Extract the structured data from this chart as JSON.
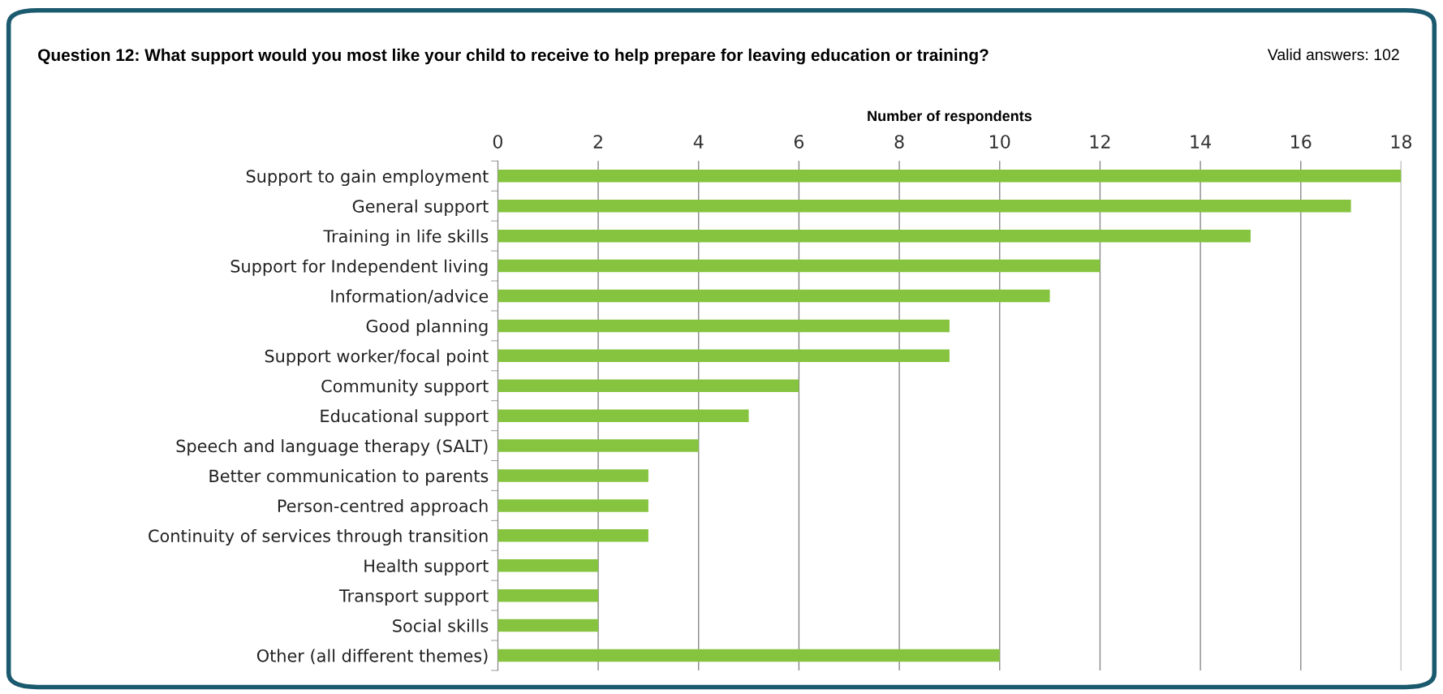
{
  "chart_data": {
    "type": "bar",
    "orientation": "horizontal",
    "title": "Question 12: What support would you most like your child to receive to help prepare for leaving education or training?",
    "xlabel": "Number of respondents",
    "annotations": [
      "Valid answers: 102"
    ],
    "categories": [
      "Support to gain employment",
      "General support",
      "Training in life skills",
      "Support for Independent living",
      "Information/advice",
      "Good planning",
      "Support worker/focal point",
      "Community support",
      "Educational support",
      "Speech and language therapy (SALT)",
      "Better communication to parents",
      "Person-centred approach",
      "Continuity of services through transition",
      "Health support",
      "Transport support",
      "Social skills",
      "Other (all different themes)"
    ],
    "values": [
      18,
      17,
      15,
      12,
      11,
      9,
      9,
      6,
      5,
      4,
      3,
      3,
      3,
      2,
      2,
      2,
      10
    ],
    "color": "#86c440",
    "xlim": [
      0,
      18
    ],
    "xticks": [
      0,
      2,
      4,
      6,
      8,
      10,
      12,
      14,
      16,
      18
    ],
    "grid": "x",
    "legend": false
  }
}
